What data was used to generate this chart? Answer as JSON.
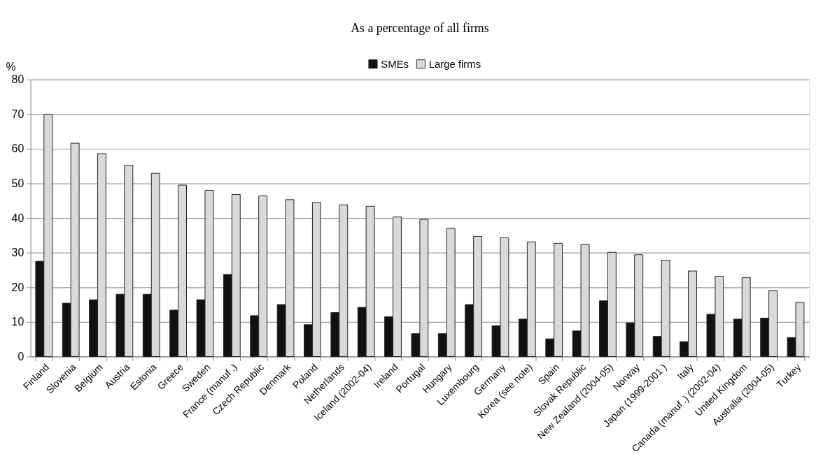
{
  "chart_data": {
    "type": "bar",
    "title": "As a percentage of all firms",
    "ylabel": "%",
    "categories": [
      "Finland",
      "Slovenia",
      "Belgium",
      "Austria",
      "Estonia",
      "Greece",
      "Sweden",
      "France (manuf .)",
      "Czech Republic",
      "Denmark",
      "Poland",
      "Netherlands",
      "Iceland (2002-04)",
      "Ireland",
      "Portugal",
      "Hungary",
      "Luxembourg",
      "Germany",
      "Korea (see note)",
      "Spain",
      "Slovak Republic",
      "New Zealand (2004-05)",
      "Norway",
      "Japan (1999-2001 )",
      "Italy",
      "Canada (manuf .) (2002-04)",
      "United Kingdom",
      "Australia (2004-05)",
      "Turkey"
    ],
    "series": [
      {
        "name": "SMEs",
        "color": "#111111",
        "values": [
          27.5,
          15.4,
          16.4,
          18.0,
          18.0,
          13.4,
          16.4,
          23.7,
          11.8,
          15.0,
          9.2,
          12.7,
          14.2,
          11.5,
          6.6,
          6.6,
          15.0,
          8.9,
          10.8,
          5.1,
          7.4,
          16.1,
          9.7,
          5.8,
          4.3,
          12.2,
          10.8,
          11.1,
          5.5
        ]
      },
      {
        "name": "Large firms",
        "color": "#d9d9d9",
        "values": [
          70.0,
          61.6,
          58.6,
          55.2,
          52.9,
          49.5,
          48.0,
          46.8,
          46.4,
          45.3,
          44.5,
          43.8,
          43.4,
          40.3,
          39.6,
          37.0,
          34.7,
          34.3,
          33.1,
          32.7,
          32.4,
          30.1,
          29.4,
          27.8,
          24.7,
          23.2,
          22.8,
          19.1,
          15.6
        ]
      }
    ],
    "ylim": [
      0,
      80
    ],
    "yticks": [
      0,
      10,
      20,
      30,
      40,
      50,
      60,
      70,
      80
    ],
    "grid": "y",
    "legend": "top"
  }
}
